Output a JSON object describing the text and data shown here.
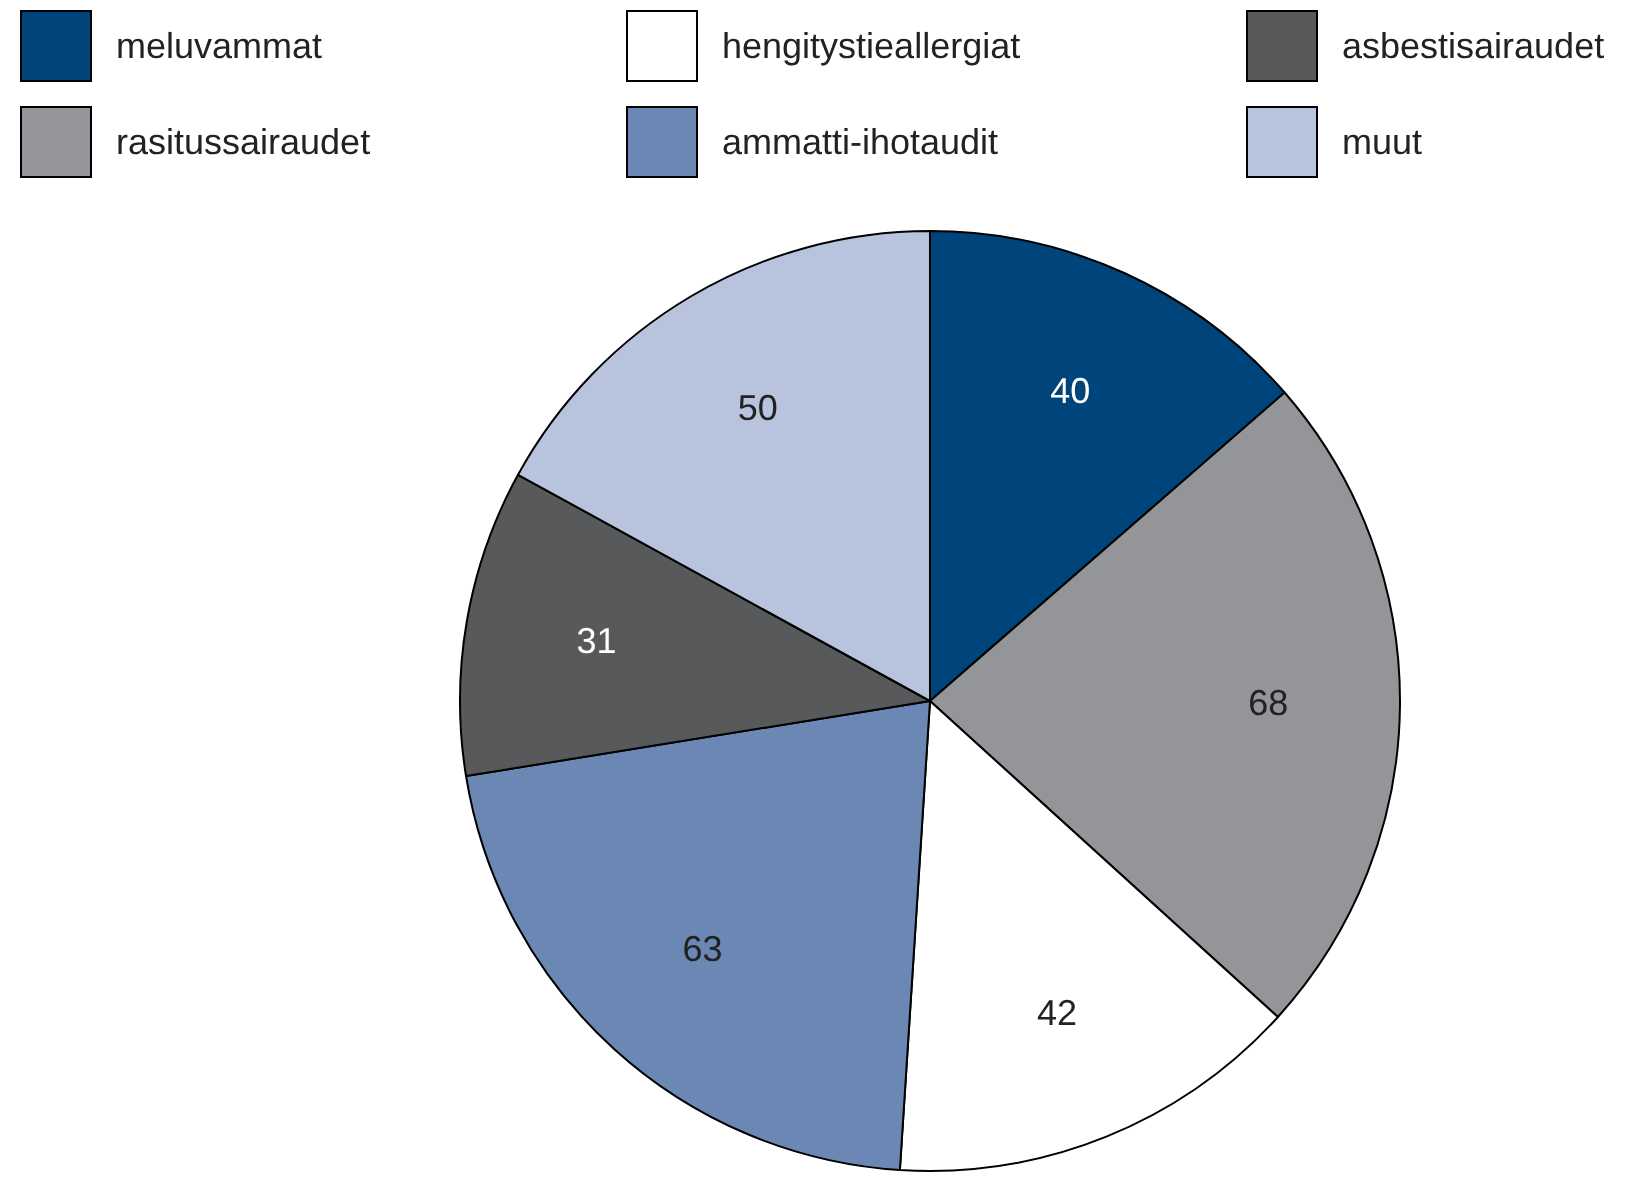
{
  "chart_data": {
    "type": "pie",
    "categories": [
      "meluvammat",
      "rasitussairaudet",
      "hengitystieallergiat",
      "ammatti-ihotaudit",
      "asbestisairaudet",
      "muut"
    ],
    "values": [
      40,
      68,
      42,
      63,
      31,
      50
    ],
    "colors": [
      "#00447c",
      "#939598",
      "#ffffff",
      "#6b88b5",
      "#58595b",
      "#b8c4de"
    ],
    "data_labels": true,
    "legend": "top"
  }
}
